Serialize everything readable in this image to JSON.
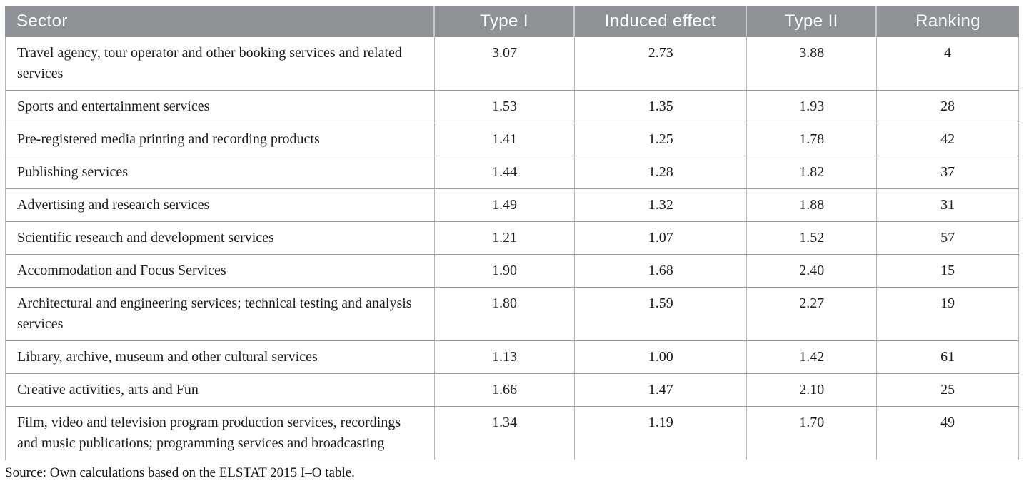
{
  "table": {
    "columns": [
      {
        "key": "sector",
        "label": "Sector",
        "align": "left"
      },
      {
        "key": "type_i",
        "label": "Type I",
        "align": "center"
      },
      {
        "key": "induced",
        "label": "Induced effect",
        "align": "center"
      },
      {
        "key": "type_ii",
        "label": "Type II",
        "align": "center"
      },
      {
        "key": "ranking",
        "label": "Ranking",
        "align": "center"
      }
    ],
    "rows": [
      {
        "sector": "Travel agency, tour operator and other booking services and related services",
        "type_i": "3.07",
        "induced": "2.73",
        "type_ii": "3.88",
        "ranking": "4"
      },
      {
        "sector": "Sports and entertainment services",
        "type_i": "1.53",
        "induced": "1.35",
        "type_ii": "1.93",
        "ranking": "28"
      },
      {
        "sector": "Pre-registered media printing and recording products",
        "type_i": "1.41",
        "induced": "1.25",
        "type_ii": "1.78",
        "ranking": "42"
      },
      {
        "sector": "Publishing services",
        "type_i": "1.44",
        "induced": "1.28",
        "type_ii": "1.82",
        "ranking": "37"
      },
      {
        "sector": "Advertising and research services",
        "type_i": "1.49",
        "induced": "1.32",
        "type_ii": "1.88",
        "ranking": "31"
      },
      {
        "sector": "Scientific research and development services",
        "type_i": "1.21",
        "induced": "1.07",
        "type_ii": "1.52",
        "ranking": "57"
      },
      {
        "sector": "Accommodation and Focus Services",
        "type_i": "1.90",
        "induced": "1.68",
        "type_ii": "2.40",
        "ranking": "15"
      },
      {
        "sector": "Architectural and engineering services; technical testing and analysis services",
        "type_i": "1.80",
        "induced": "1.59",
        "type_ii": "2.27",
        "ranking": "19"
      },
      {
        "sector": "Library, archive, museum and other cultural services",
        "type_i": "1.13",
        "induced": "1.00",
        "type_ii": "1.42",
        "ranking": "61"
      },
      {
        "sector": "Creative activities, arts and Fun",
        "type_i": "1.66",
        "induced": "1.47",
        "type_ii": "2.10",
        "ranking": "25"
      },
      {
        "sector": "Film, video and television program production services, recordings and music publications; programming services and broadcasting",
        "type_i": "1.34",
        "induced": "1.19",
        "type_ii": "1.70",
        "ranking": "49"
      }
    ],
    "source": "Source: Own calculations based on the ELSTAT 2015 I–O table."
  },
  "colors": {
    "header_bg": "#8e9296",
    "header_text": "#ffffff",
    "row_border": "#9c9c9c",
    "column_border": "#b4b7b9",
    "body_text": "#1c1c1c"
  },
  "chart_data": {
    "type": "table",
    "title": "",
    "columns": [
      "Sector",
      "Type I",
      "Induced effect",
      "Type II",
      "Ranking"
    ],
    "rows": [
      [
        "Travel agency, tour operator and other booking services and related services",
        3.07,
        2.73,
        3.88,
        4
      ],
      [
        "Sports and entertainment services",
        1.53,
        1.35,
        1.93,
        28
      ],
      [
        "Pre-registered media printing and recording products",
        1.41,
        1.25,
        1.78,
        42
      ],
      [
        "Publishing services",
        1.44,
        1.28,
        1.82,
        37
      ],
      [
        "Advertising and research services",
        1.49,
        1.32,
        1.88,
        31
      ],
      [
        "Scientific research and development services",
        1.21,
        1.07,
        1.52,
        57
      ],
      [
        "Accommodation and Focus Services",
        1.9,
        1.68,
        2.4,
        15
      ],
      [
        "Architectural and engineering services; technical testing and analysis services",
        1.8,
        1.59,
        2.27,
        19
      ],
      [
        "Library, archive, museum and other cultural services",
        1.13,
        1.0,
        1.42,
        61
      ],
      [
        "Creative activities, arts and Fun",
        1.66,
        1.47,
        2.1,
        25
      ],
      [
        "Film, video and television program production services, recordings and music publications; programming services and broadcasting",
        1.34,
        1.19,
        1.7,
        49
      ]
    ],
    "source_note": "Source: Own calculations based on the ELSTAT 2015 I–O table."
  }
}
